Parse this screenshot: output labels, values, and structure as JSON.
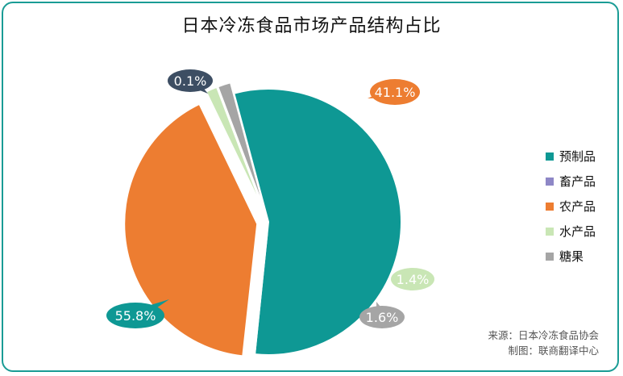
{
  "chart_data": {
    "type": "pie",
    "title": "日本冷冻食品市场产品结构占比",
    "slices": [
      {
        "label": "预制品",
        "value": 55.8,
        "value_label": "55.8%",
        "color": "#0e9894",
        "explode": false
      },
      {
        "label": "畜产品",
        "value": 0.1,
        "value_label": "0.1%",
        "color": "#8e87c6",
        "explode": true
      },
      {
        "label": "农产品",
        "value": 41.1,
        "value_label": "41.1%",
        "color": "#ed7d31",
        "explode": true
      },
      {
        "label": "水产品",
        "value": 1.4,
        "value_label": "1.4%",
        "color": "#c9e6b5",
        "explode": true
      },
      {
        "label": "糖果",
        "value": 1.6,
        "value_label": "1.6%",
        "color": "#a5a5a5",
        "explode": true
      }
    ],
    "label_colors": [
      "#0e9894",
      "#3d4e63",
      "#ed7d31",
      "#c9e6b5",
      "#a5a5a5"
    ],
    "legend_position": "right"
  },
  "source_text": "来源：日本冷冻食品协会",
  "made_by_text": "制图：联商翻译中心"
}
